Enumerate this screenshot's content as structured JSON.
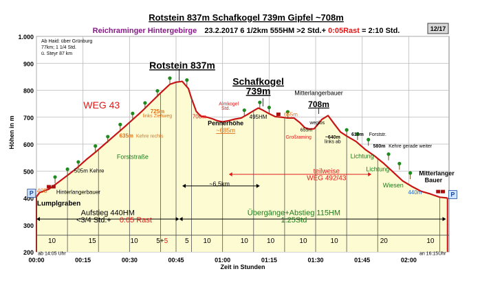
{
  "page_badge": "12/17",
  "chart_data": {
    "type": "area",
    "title": "Rotstein 837m Schafkogel 739m Gipfel ~708m",
    "subtitle": {
      "region": "Reichraminger Hintergebirge",
      "details": "23.2.2017   6 1/2km   555HM     >2 Std.+ ",
      "rest": "0:05Rast",
      "total": " = 2:10 Std."
    },
    "info_box": [
      "Ab Haid: über Grünburg",
      "77km; 1 1/4 Std.",
      "ü. Steyr 87 km"
    ],
    "xlabel": "Zeit in Stunden",
    "ylabel": "Höhen in m",
    "xlim": [
      0,
      133
    ],
    "ylim": [
      200,
      1000
    ],
    "x_ticks": [
      {
        "v": 0,
        "label": "00:00"
      },
      {
        "v": 15,
        "label": "00:15"
      },
      {
        "v": 30,
        "label": "00:30"
      },
      {
        "v": 45,
        "label": "00:45"
      },
      {
        "v": 60,
        "label": "01:00"
      },
      {
        "v": 75,
        "label": "01:15"
      },
      {
        "v": 90,
        "label": "01:30"
      },
      {
        "v": 105,
        "label": "01:45"
      },
      {
        "v": 120,
        "label": "02:00"
      }
    ],
    "y_ticks": [
      {
        "v": 200,
        "label": "200"
      },
      {
        "v": 300,
        "label": "300"
      },
      {
        "v": 400,
        "label": "400"
      },
      {
        "v": 500,
        "label": "500"
      },
      {
        "v": 600,
        "label": "600"
      },
      {
        "v": 700,
        "label": "700"
      },
      {
        "v": 800,
        "label": "800"
      },
      {
        "v": 900,
        "label": "900"
      },
      {
        "v": 1000,
        "label": "1.000"
      }
    ],
    "profile": {
      "x": [
        0,
        1,
        4,
        7,
        10,
        13,
        16,
        19,
        22,
        25,
        28,
        31,
        34,
        37,
        40,
        43,
        45,
        47,
        49,
        50,
        51.5,
        53,
        55,
        57,
        58,
        59,
        60,
        62,
        64,
        66,
        68,
        70,
        71.5,
        73,
        75,
        77,
        79,
        81,
        83,
        85,
        86.5,
        88,
        89.5,
        91,
        92,
        94,
        96,
        98,
        100,
        103,
        106,
        109,
        112,
        115,
        118,
        121,
        124,
        127,
        130,
        132.5
      ],
      "y": [
        405,
        420,
        433,
        458,
        484,
        511,
        542,
        570,
        600,
        630,
        660,
        691,
        722,
        756,
        790,
        822,
        830,
        833,
        806,
        769,
        722,
        703,
        700,
        693,
        688,
        685,
        683,
        687,
        693,
        697,
        710,
        724,
        734,
        726,
        713,
        702,
        700,
        697,
        697,
        679,
        661,
        656,
        657,
        677,
        692,
        706,
        675,
        645,
        630,
        610,
        580,
        556,
        528,
        496,
        464,
        443,
        425,
        415,
        403,
        400
      ]
    },
    "separators_x": [
      0,
      10,
      20,
      30,
      40,
      45,
      50,
      60,
      70,
      80,
      90,
      100,
      110,
      130
    ],
    "segment_minutes": [
      {
        "x": 5,
        "label": "10"
      },
      {
        "x": 18,
        "label": "15"
      },
      {
        "x": 31.5,
        "label": "10"
      },
      {
        "x": 40.5,
        "label": "5+",
        "extra": "5"
      },
      {
        "x": 48.5,
        "label": "5"
      },
      {
        "x": 55,
        "label": "10"
      },
      {
        "x": 67,
        "label": "10"
      },
      {
        "x": 75.5,
        "label": "10"
      },
      {
        "x": 86,
        "label": "10"
      },
      {
        "x": 96,
        "label": "10"
      },
      {
        "x": 112,
        "label": "20"
      },
      {
        "x": 127,
        "label": "10"
      }
    ],
    "annotations": [
      {
        "text": "Rotstein 837m",
        "x": 47,
        "y": 880,
        "color": "#000000",
        "size": 14,
        "weight": "bold",
        "underline": true
      },
      {
        "text": "Schafkogel",
        "x": 71.5,
        "y": 820,
        "color": "#000000",
        "size": 14,
        "weight": "bold",
        "underline": true
      },
      {
        "text": "739m",
        "x": 71.5,
        "y": 785,
        "color": "#000000",
        "size": 14,
        "weight": "bold",
        "underline": true
      },
      {
        "text": "Mitterlangerbauer",
        "x": 91,
        "y": 782,
        "color": "#000000",
        "size": 9
      },
      {
        "text": "708m",
        "x": 91,
        "y": 738,
        "color": "#000000",
        "size": 12,
        "weight": "bold",
        "underline": true
      },
      {
        "text": "WEG 43",
        "x": 21,
        "y": 732,
        "color": "#e01818",
        "size": 14
      },
      {
        "text": "725m",
        "x": 39,
        "y": 715,
        "color": "#e07018",
        "size": 8,
        "weight": "bold"
      },
      {
        "text": "links Ziehweg",
        "x": 39,
        "y": 700,
        "color": "#e07018",
        "size": 7
      },
      {
        "text": "635m",
        "x": 29,
        "y": 624,
        "color": "#e07018",
        "size": 8,
        "weight": "bold"
      },
      {
        "text": "Kehre rechts",
        "x": 36.5,
        "y": 624,
        "color": "#e07018",
        "size": 7
      },
      {
        "text": "505m Kehre",
        "x": 17,
        "y": 494,
        "color": "#000000",
        "size": 8
      },
      {
        "text": "Forststraße",
        "x": 31,
        "y": 545,
        "color": "#1a7a1a",
        "size": 9
      },
      {
        "text": "Hinterlangerbauer",
        "x": 13.5,
        "y": 415,
        "color": "#000000",
        "size": 8
      },
      {
        "text": "405",
        "x": 1.8,
        "y": 419,
        "color": "#e07018",
        "size": 9
      },
      {
        "text": "Lumplgraben",
        "x": 0.2,
        "y": 372,
        "color": "#000000",
        "size": 10,
        "weight": "bold",
        "anchor": "start"
      },
      {
        "text": "700m",
        "x": 52.5,
        "y": 696,
        "color": "#e01818",
        "size": 8
      },
      {
        "text": "Almkogel",
        "x": 62,
        "y": 744,
        "color": "#e01818",
        "size": 7
      },
      {
        "text": "Std.",
        "x": 61,
        "y": 728,
        "color": "#e01818",
        "size": 7
      },
      {
        "text": "Pennerhöhe",
        "x": 61,
        "y": 670,
        "color": "#000000",
        "size": 9,
        "weight": "bold"
      },
      {
        "text": "~685m",
        "x": 61,
        "y": 643,
        "color": "#e07018",
        "size": 9,
        "underline": true
      },
      {
        "text": "~6,5km",
        "x": 59,
        "y": 445,
        "color": "#000000",
        "size": 9
      },
      {
        "text": "495HM",
        "x": 71.5,
        "y": 694,
        "color": "#000000",
        "size": 8
      },
      {
        "text": "655m",
        "x": 82,
        "y": 703,
        "color": "#e07018",
        "size": 8
      },
      {
        "text": "Großraming",
        "x": 84.5,
        "y": 620,
        "color": "#e01818",
        "size": 7
      },
      {
        "text": "655m",
        "x": 87,
        "y": 647,
        "color": "#000000",
        "size": 7
      },
      {
        "text": "weglos",
        "x": 90.5,
        "y": 674,
        "color": "#000000",
        "size": 7
      },
      {
        "text": "~640m",
        "x": 95.5,
        "y": 620,
        "color": "#000000",
        "size": 7,
        "weight": "bold"
      },
      {
        "text": "links ab",
        "x": 95.5,
        "y": 604,
        "color": "#000000",
        "size": 7
      },
      {
        "text": "610m",
        "x": 103.5,
        "y": 631,
        "color": "#000000",
        "size": 7,
        "weight": "bold"
      },
      {
        "text": "Forststr.",
        "x": 110,
        "y": 631,
        "color": "#000000",
        "size": 7
      },
      {
        "text": "580m",
        "x": 110.5,
        "y": 587,
        "color": "#000000",
        "size": 7,
        "weight": "bold"
      },
      {
        "text": "Kehre  gerade weiter",
        "x": 120.5,
        "y": 587,
        "color": "#000000",
        "size": 7
      },
      {
        "text": "Lichtung",
        "x": 105,
        "y": 548,
        "color": "#1a7a1a",
        "size": 9
      },
      {
        "text": "Lichtung",
        "x": 110,
        "y": 500,
        "color": "#1a7a1a",
        "size": 9
      },
      {
        "text": "teilweise",
        "x": 93.5,
        "y": 492,
        "color": "#e01818",
        "size": 10
      },
      {
        "text": "WEG 492/43",
        "x": 93.5,
        "y": 466,
        "color": "#e01818",
        "size": 10
      },
      {
        "text": "Wiesen",
        "x": 115,
        "y": 439,
        "color": "#1a7a1a",
        "size": 9
      },
      {
        "text": "440m",
        "x": 122,
        "y": 414,
        "color": "#1a6ad0",
        "size": 8
      },
      {
        "text": "Mitterlanger",
        "x": 129,
        "y": 484,
        "color": "#000000",
        "size": 9,
        "weight": "bold"
      },
      {
        "text": "Bauer",
        "x": 128,
        "y": 458,
        "color": "#000000",
        "size": 9,
        "weight": "bold"
      },
      {
        "text": "Aufstieg 440HM",
        "x": 23,
        "y": 336,
        "color": "#000000",
        "size": 11
      },
      {
        "text": "<3/4 Std.+",
        "x": 18.5,
        "y": 310,
        "color": "#000000",
        "size": 11
      },
      {
        "text": "0:05 Rast",
        "x": 32,
        "y": 310,
        "color": "#e01818",
        "size": 11
      },
      {
        "text": "Übergänge+Abstieg 115HM",
        "x": 83,
        "y": 336,
        "color": "#1a7a1a",
        "size": 11
      },
      {
        "text": "1:25Std",
        "x": 83,
        "y": 310,
        "color": "#1a7a1a",
        "size": 11
      },
      {
        "text": "ab 14:05 Uhr",
        "x": 0.5,
        "y": 188,
        "color": "#000000",
        "size": 7,
        "anchor": "start"
      },
      {
        "text": "an 16:15Uhr",
        "x": 132,
        "y": 188,
        "color": "#000000",
        "size": 7,
        "anchor": "end"
      },
      {
        "text": "P",
        "x": -1.6,
        "y": 410,
        "color": "#1a4aa0",
        "size": 9,
        "weight": "bold"
      },
      {
        "text": "P",
        "x": 134.2,
        "y": 405,
        "color": "#1a4aa0",
        "size": 9,
        "weight": "bold"
      }
    ],
    "trees": [
      {
        "x": 6,
        "y": 455
      },
      {
        "x": 10,
        "y": 484
      },
      {
        "x": 13.5,
        "y": 511
      },
      {
        "x": 19,
        "y": 570
      },
      {
        "x": 23,
        "y": 605
      },
      {
        "x": 27,
        "y": 650
      },
      {
        "x": 31,
        "y": 691
      },
      {
        "x": 35,
        "y": 730
      },
      {
        "x": 39,
        "y": 775
      },
      {
        "x": 43,
        "y": 822
      },
      {
        "x": 48.5,
        "y": 815
      },
      {
        "x": 67,
        "y": 703
      },
      {
        "x": 72,
        "y": 732
      },
      {
        "x": 75,
        "y": 713
      },
      {
        "x": 81,
        "y": 697
      },
      {
        "x": 100,
        "y": 630
      },
      {
        "x": 103.5,
        "y": 615
      },
      {
        "x": 107,
        "y": 594
      },
      {
        "x": 113.5,
        "y": 540
      },
      {
        "x": 117,
        "y": 505
      },
      {
        "x": 120.5,
        "y": 470
      }
    ],
    "houses": [
      {
        "x": 4,
        "y": 433
      },
      {
        "x": 5.5,
        "y": 433
      },
      {
        "x": 129.5,
        "y": 415
      },
      {
        "x": 131,
        "y": 415
      },
      {
        "x": 78,
        "y": 702
      }
    ],
    "km_arrow": {
      "x1": 47,
      "x2": 72,
      "y": 445
    },
    "weg_arrow": {
      "x1": 62,
      "x2": 108,
      "y": 488
    },
    "left_span": {
      "x1": 0,
      "x2": 46,
      "y": 322
    },
    "right_span": {
      "x1": 46,
      "x2": 132,
      "y": 322
    }
  }
}
